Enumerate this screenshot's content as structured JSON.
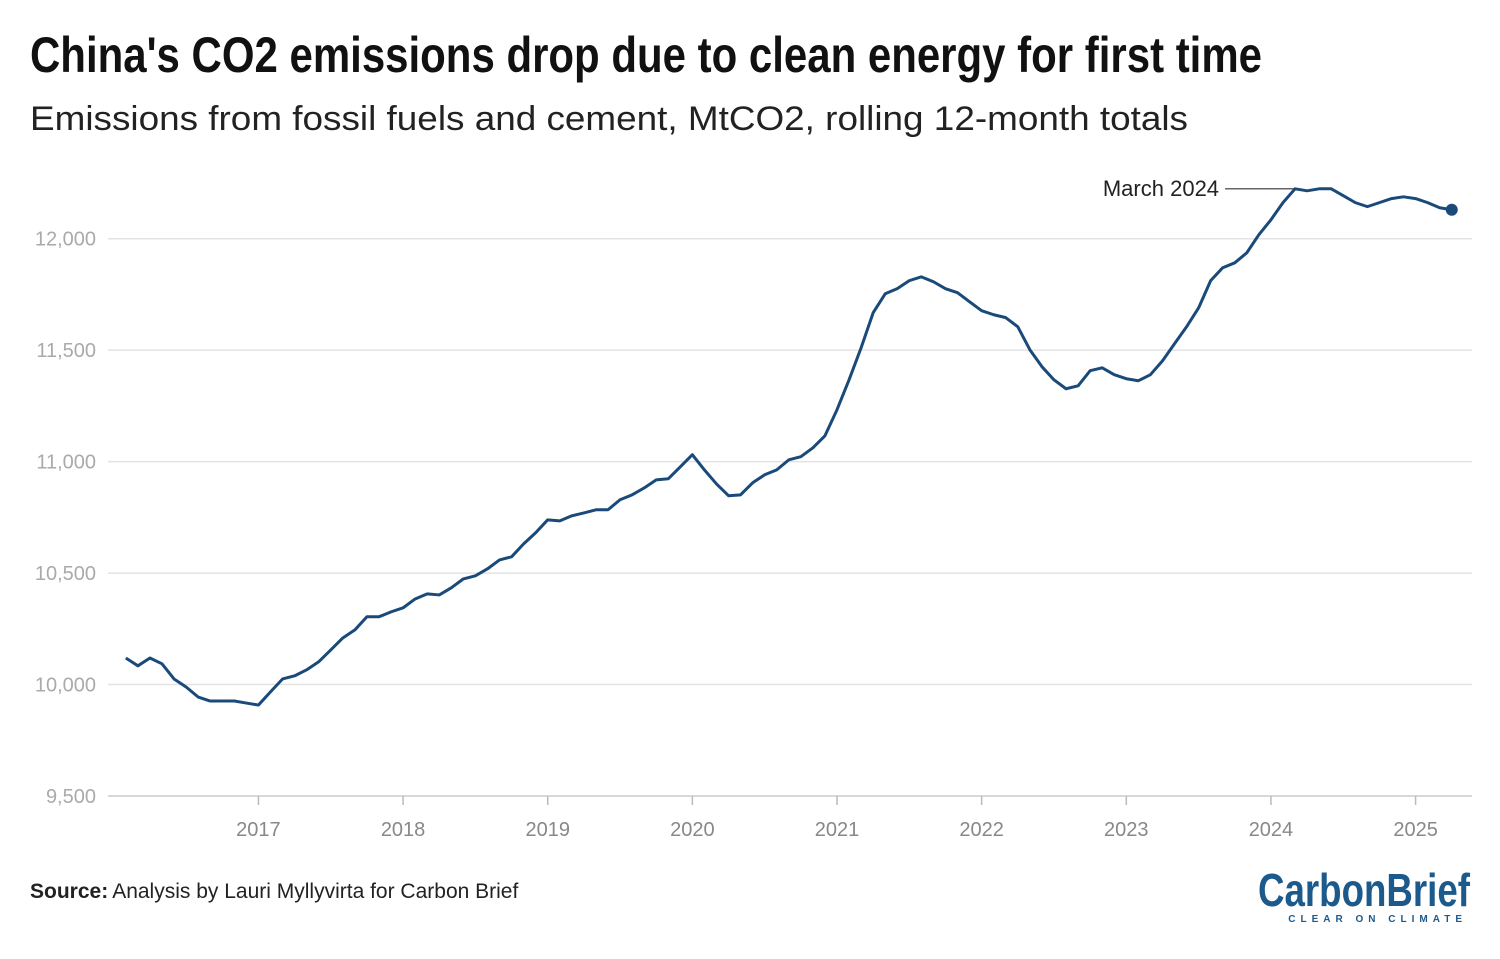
{
  "chart_data": {
    "type": "line",
    "title": "China's CO2 emissions drop due to clean energy for first time",
    "subtitle": "Emissions from fossil fuels and cement, MtCO2, rolling 12-month totals",
    "x": [
      2016.0833,
      2016.1667,
      2016.25,
      2016.3333,
      2016.4167,
      2016.5,
      2016.5833,
      2016.6667,
      2016.75,
      2016.8333,
      2016.9167,
      2017,
      2017.0833,
      2017.1667,
      2017.25,
      2017.3333,
      2017.4167,
      2017.5,
      2017.5833,
      2017.6667,
      2017.75,
      2017.8333,
      2017.9167,
      2018,
      2018.0833,
      2018.1667,
      2018.25,
      2018.3333,
      2018.4167,
      2018.5,
      2018.5833,
      2018.6667,
      2018.75,
      2018.8333,
      2018.9167,
      2019,
      2019.0833,
      2019.1667,
      2019.25,
      2019.3333,
      2019.4167,
      2019.5,
      2019.5833,
      2019.6667,
      2019.75,
      2019.8333,
      2019.9167,
      2020,
      2020.0833,
      2020.1667,
      2020.25,
      2020.3333,
      2020.4167,
      2020.5,
      2020.5833,
      2020.6667,
      2020.75,
      2020.8333,
      2020.9167,
      2021,
      2021.0833,
      2021.1667,
      2021.25,
      2021.3333,
      2021.4167,
      2021.5,
      2021.5833,
      2021.6667,
      2021.75,
      2021.8333,
      2021.9167,
      2022,
      2022.0833,
      2022.1667,
      2022.25,
      2022.3333,
      2022.4167,
      2022.5,
      2022.5833,
      2022.6667,
      2022.75,
      2022.8333,
      2022.9167,
      2023,
      2023.0833,
      2023.1667,
      2023.25,
      2023.3333,
      2023.4167,
      2023.5,
      2023.5833,
      2023.6667,
      2023.75,
      2023.8333,
      2023.9167,
      2024,
      2024.0833,
      2024.1667,
      2024.25,
      2024.3333,
      2024.4167,
      2024.5,
      2024.5833,
      2024.6667,
      2024.75,
      2024.8333,
      2024.9167,
      2025,
      2025.0833,
      2025.1667,
      2025.25
    ],
    "series": [
      {
        "color": "#1a4a7a",
        "values": [
          10119,
          10084,
          10119,
          10093,
          10025,
          9989,
          9944,
          9926,
          9926,
          9926,
          9917,
          9908,
          9967,
          10025,
          10039,
          10066,
          10102,
          10155,
          10209,
          10245,
          10304,
          10304,
          10326,
          10344,
          10384,
          10407,
          10402,
          10434,
          10474,
          10488,
          10519,
          10559,
          10573,
          10631,
          10681,
          10739,
          10734,
          10757,
          10770,
          10784,
          10784,
          10829,
          10851,
          10882,
          10918,
          10923,
          10977,
          11031,
          10963,
          10900,
          10847,
          10851,
          10905,
          10941,
          10963,
          11008,
          11022,
          11062,
          11116,
          11233,
          11367,
          11511,
          11668,
          11753,
          11776,
          11812,
          11829,
          11807,
          11776,
          11758,
          11717,
          11677,
          11659,
          11646,
          11605,
          11502,
          11426,
          11367,
          11327,
          11340,
          11408,
          11421,
          11390,
          11372,
          11363,
          11390,
          11452,
          11529,
          11605,
          11690,
          11812,
          11870,
          11892,
          11937,
          12018,
          12085,
          12162,
          12224,
          12215,
          12224,
          12224,
          12193,
          12162,
          12144,
          12162,
          12180,
          12188,
          12180,
          12162,
          12139,
          12130
        ]
      }
    ],
    "xlim": [
      2015.96,
      2025.39
    ],
    "xticks": [
      2017,
      2018,
      2019,
      2020,
      2021,
      2022,
      2023,
      2024,
      2025
    ],
    "ylim": [
      9500,
      12250
    ],
    "yticks": [
      {
        "value": 9500,
        "label": "9,500"
      },
      {
        "value": 10000,
        "label": "10,000"
      },
      {
        "value": 10500,
        "label": "10,500"
      },
      {
        "value": 11000,
        "label": "11,000"
      },
      {
        "value": 11500,
        "label": "11,500"
      },
      {
        "value": 12000,
        "label": "12,000"
      }
    ],
    "grid": true,
    "annotations": [
      {
        "text": "March 2024",
        "x": 2024.1667,
        "y": 12224
      }
    ],
    "source_label": "Source:",
    "source": "Analysis by Lauri Myllyvirta for Carbon Brief",
    "logo": "CarbonBrief",
    "logo_tagline": "CLEAR ON CLIMATE"
  }
}
